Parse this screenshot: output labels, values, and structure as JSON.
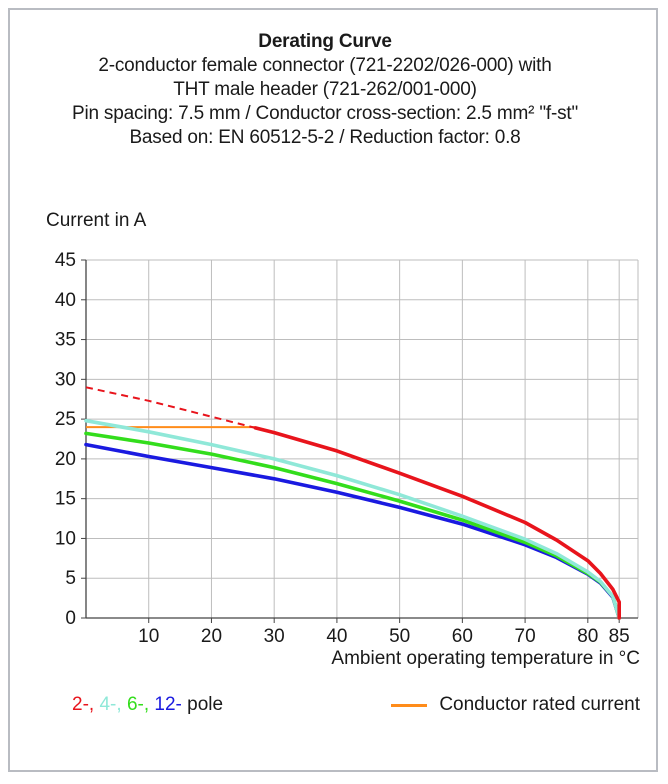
{
  "chart_data": {
    "type": "line",
    "title": "Derating Curve",
    "subtitle_lines": [
      "2-conductor female connector (721-2202/026-000) with",
      "THT male header (721-262/001-000)",
      "Pin spacing: 7.5 mm / Conductor cross-section: 2.5 mm² \"f-st\"",
      "Based on: EN 60512-5-2 / Reduction factor: 0.8"
    ],
    "ylabel": "Current in A",
    "xlabel": "Ambient operating temperature in °C",
    "xlim": [
      0,
      88
    ],
    "ylim": [
      0,
      45
    ],
    "xticks": [
      10,
      20,
      30,
      40,
      50,
      60,
      70,
      80,
      85
    ],
    "yticks": [
      0,
      5,
      10,
      15,
      20,
      25,
      30,
      35,
      40,
      45
    ],
    "grid": true,
    "series": [
      {
        "name": "2-",
        "color": "#e8141c",
        "dashed_until_x": 27,
        "x": [
          0,
          10,
          20,
          27,
          30,
          40,
          50,
          60,
          70,
          75,
          80,
          82,
          84,
          85,
          85
        ],
        "y": [
          29,
          27.3,
          25.3,
          23.9,
          23.3,
          21,
          18.2,
          15.3,
          12,
          9.8,
          7.2,
          5.6,
          3.6,
          2,
          0
        ]
      },
      {
        "name": "4-",
        "color": "#8fe8d8",
        "x": [
          0,
          10,
          20,
          30,
          40,
          50,
          60,
          70,
          75,
          80,
          82,
          84,
          85
        ],
        "y": [
          24.8,
          23.4,
          21.8,
          20,
          17.9,
          15.5,
          12.8,
          9.9,
          8.1,
          5.8,
          4.6,
          2.7,
          0
        ]
      },
      {
        "name": "6-",
        "color": "#33dd1c",
        "x": [
          0,
          10,
          20,
          30,
          40,
          50,
          60,
          70,
          75,
          80,
          82,
          84,
          85
        ],
        "y": [
          23.2,
          22,
          20.6,
          18.9,
          16.9,
          14.7,
          12.3,
          9.5,
          7.8,
          5.6,
          4.5,
          2.7,
          0
        ]
      },
      {
        "name": "12-",
        "color": "#1a1ae0",
        "x": [
          0,
          10,
          20,
          30,
          40,
          50,
          60,
          70,
          75,
          80,
          82,
          84,
          85
        ],
        "y": [
          21.8,
          20.3,
          18.9,
          17.5,
          15.8,
          13.9,
          11.8,
          9.2,
          7.6,
          5.5,
          4.4,
          2.6,
          0
        ]
      }
    ],
    "rated_current": {
      "label": "Conductor rated current",
      "value": 24,
      "x_end": 27,
      "color": "#ff8c1a"
    },
    "legend": {
      "pole_labels": [
        {
          "text": "2-",
          "color": "#e8141c"
        },
        {
          "text": ", ",
          "color": "#e8141c"
        },
        {
          "text": "4-",
          "color": "#8fe8d8"
        },
        {
          "text": ", ",
          "color": "#8fe8d8"
        },
        {
          "text": "6-",
          "color": "#33dd1c"
        },
        {
          "text": ", ",
          "color": "#33dd1c"
        },
        {
          "text": "12-",
          "color": "#1a1ae0"
        }
      ],
      "pole_suffix": " pole",
      "placement": "bottom"
    }
  }
}
